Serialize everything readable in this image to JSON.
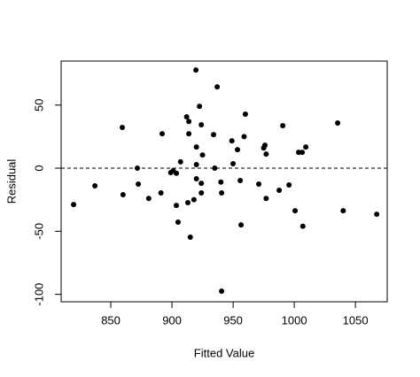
{
  "chart_data": {
    "type": "scatter",
    "xlabel": "Fitted Value",
    "ylabel": "Residual",
    "color": "#000000",
    "xlim": [
      809.4,
      1076
    ],
    "ylim": [
      -105.9,
      84.9
    ],
    "xticks": [
      850,
      900,
      950,
      1000,
      1050
    ],
    "yticks": [
      -100,
      -50,
      0,
      50
    ],
    "reference_line": 0,
    "x": [
      819.6,
      837,
      859.4,
      860,
      871.7,
      872.5,
      881,
      891,
      892,
      899,
      901,
      903.6,
      903.6,
      905,
      907,
      912,
      913.8,
      913.8,
      913,
      915,
      918,
      919.6,
      920,
      920,
      920,
      922.5,
      924,
      924,
      924,
      925,
      934,
      935,
      937,
      940,
      940.6,
      940.6,
      949,
      950,
      953.6,
      955.8,
      956.5,
      959,
      960,
      971,
      975,
      976,
      977,
      977,
      987.7,
      990.6,
      995.7,
      1000.7,
      1003.6,
      1006.5,
      1007,
      1009.4,
      1035.5,
      1040,
      1067.4
    ],
    "values": [
      -28.8,
      -14,
      32.3,
      -21,
      0,
      -12.6,
      -24,
      -19.6,
      27.3,
      -3.5,
      -2,
      -4,
      -29.5,
      -42.8,
      5,
      40.7,
      37,
      27.3,
      -27.3,
      -54.7,
      -25,
      77.8,
      16.8,
      2.8,
      -8.4,
      49,
      34.4,
      -12,
      -19.6,
      10.5,
      26.6,
      0,
      64.5,
      -11,
      -19.6,
      -97.5,
      21.7,
      3.5,
      14.7,
      -9.8,
      -45,
      25,
      42.8,
      -12.6,
      16,
      18.2,
      11.2,
      -24,
      -17.5,
      33.7,
      -13.3,
      -33.7,
      12.6,
      12.6,
      -46,
      16.8,
      35.8,
      -33.7,
      -36.5
    ]
  }
}
